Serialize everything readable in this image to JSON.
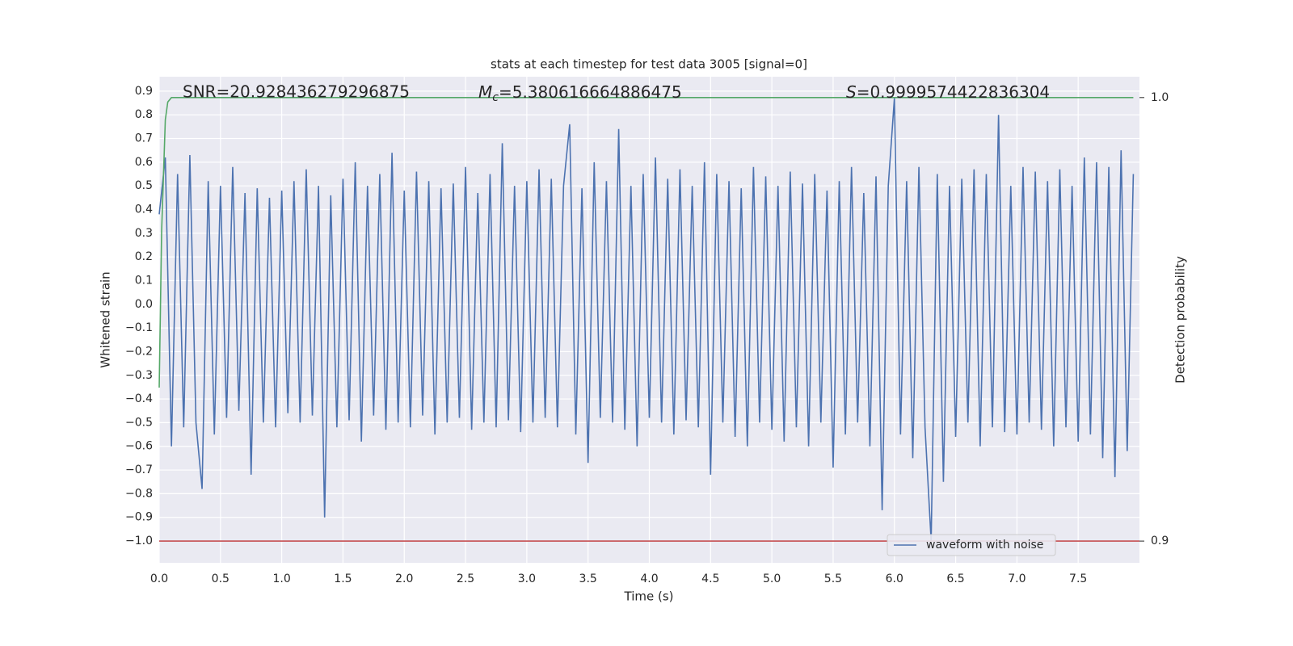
{
  "chart_data": {
    "type": "line",
    "title": "stats at each timestep for test data 3005 [signal=0]",
    "x_label": "Time (s)",
    "y_label": "Whitened strain",
    "y2_label": "Detection probability",
    "annotations": [
      {
        "text": "SNR=20.928436279296875"
      },
      {
        "symbol": "M",
        "subscript": "c",
        "text": "=5.380616664886475"
      },
      {
        "symbol": "S",
        "text": "=0.9999574422836304"
      }
    ],
    "xlim": [
      0,
      8
    ],
    "ylim": [
      -1.092,
      0.961
    ],
    "y2lim": [
      0.8951,
      1.0047
    ],
    "grid": true,
    "legend": "lower right",
    "xticks": [
      {
        "value": 0,
        "label": "0.0"
      },
      {
        "value": 0.5,
        "label": "0.5"
      },
      {
        "value": 1,
        "label": "1.0"
      },
      {
        "value": 1.5,
        "label": "1.5"
      },
      {
        "value": 2,
        "label": "2.0"
      },
      {
        "value": 2.5,
        "label": "2.5"
      },
      {
        "value": 3,
        "label": "3.0"
      },
      {
        "value": 3.5,
        "label": "3.5"
      },
      {
        "value": 4,
        "label": "4.0"
      },
      {
        "value": 4.5,
        "label": "4.5"
      },
      {
        "value": 5,
        "label": "5.0"
      },
      {
        "value": 5.5,
        "label": "5.5"
      },
      {
        "value": 6,
        "label": "6.0"
      },
      {
        "value": 6.5,
        "label": "6.5"
      },
      {
        "value": 7,
        "label": "7.0"
      },
      {
        "value": 7.5,
        "label": "7.5"
      }
    ],
    "yticks": [
      {
        "value": 0.9,
        "label": "0.9"
      },
      {
        "value": 0.8,
        "label": "0.8"
      },
      {
        "value": 0.7,
        "label": "0.7"
      },
      {
        "value": 0.6,
        "label": "0.6"
      },
      {
        "value": 0.5,
        "label": "0.5"
      },
      {
        "value": 0.4,
        "label": "0.4"
      },
      {
        "value": 0.3,
        "label": "0.3"
      },
      {
        "value": 0.2,
        "label": "0.2"
      },
      {
        "value": 0.1,
        "label": "0.1"
      },
      {
        "value": 0,
        "label": "0.0"
      },
      {
        "value": -0.1,
        "label": "−0.1"
      },
      {
        "value": -0.2,
        "label": "−0.2"
      },
      {
        "value": -0.3,
        "label": "−0.3"
      },
      {
        "value": -0.4,
        "label": "−0.4"
      },
      {
        "value": -0.5,
        "label": "−0.5"
      },
      {
        "value": -0.6,
        "label": "−0.6"
      },
      {
        "value": -0.7,
        "label": "−0.7"
      },
      {
        "value": -0.8,
        "label": "−0.8"
      },
      {
        "value": -0.9,
        "label": "−0.9"
      },
      {
        "value": -1,
        "label": "−1.0"
      }
    ],
    "y2ticks": [
      {
        "value": 1,
        "label": "1.0"
      },
      {
        "value": 0.9,
        "label": "0.9"
      }
    ],
    "series": [
      {
        "name": "waveform with noise",
        "color": "#4c72b0",
        "x": [
          0,
          0.05,
          0.1,
          0.15,
          0.2,
          0.25,
          0.3,
          0.35,
          0.4,
          0.45,
          0.5,
          0.55,
          0.6,
          0.65,
          0.7,
          0.75,
          0.8,
          0.85,
          0.9,
          0.95,
          1,
          1.05,
          1.1,
          1.15,
          1.2,
          1.25,
          1.3,
          1.35,
          1.4,
          1.45,
          1.5,
          1.55,
          1.6,
          1.65,
          1.7,
          1.75,
          1.8,
          1.85,
          1.9,
          1.95,
          2,
          2.05,
          2.1,
          2.15,
          2.2,
          2.25,
          2.3,
          2.35,
          2.4,
          2.45,
          2.5,
          2.55,
          2.6,
          2.65,
          2.7,
          2.75,
          2.8,
          2.85,
          2.9,
          2.95,
          3,
          3.05,
          3.1,
          3.15,
          3.2,
          3.25,
          3.3,
          3.35,
          3.4,
          3.45,
          3.5,
          3.55,
          3.6,
          3.65,
          3.7,
          3.75,
          3.8,
          3.85,
          3.9,
          3.95,
          4,
          4.05,
          4.1,
          4.15,
          4.2,
          4.25,
          4.3,
          4.35,
          4.4,
          4.45,
          4.5,
          4.55,
          4.6,
          4.65,
          4.7,
          4.75,
          4.8,
          4.85,
          4.9,
          4.95,
          5,
          5.05,
          5.1,
          5.15,
          5.2,
          5.25,
          5.3,
          5.35,
          5.4,
          5.45,
          5.5,
          5.55,
          5.6,
          5.65,
          5.7,
          5.75,
          5.8,
          5.85,
          5.9,
          5.95,
          6,
          6.05,
          6.1,
          6.15,
          6.2,
          6.25,
          6.3,
          6.35,
          6.4,
          6.45,
          6.5,
          6.55,
          6.6,
          6.65,
          6.7,
          6.75,
          6.8,
          6.85,
          6.9,
          6.95,
          7,
          7.05,
          7.1,
          7.15,
          7.2,
          7.25,
          7.3,
          7.35,
          7.4,
          7.45,
          7.5,
          7.55,
          7.6,
          7.65,
          7.7,
          7.75,
          7.8,
          7.85,
          7.9,
          7.95
        ],
        "values": [
          0.38,
          0.62,
          -0.6,
          0.55,
          -0.52,
          0.63,
          -0.5,
          -0.78,
          0.52,
          -0.55,
          0.5,
          -0.48,
          0.58,
          -0.45,
          0.47,
          -0.72,
          0.49,
          -0.5,
          0.45,
          -0.52,
          0.48,
          -0.46,
          0.52,
          -0.5,
          0.57,
          -0.47,
          0.5,
          -0.9,
          0.46,
          -0.52,
          0.53,
          -0.49,
          0.6,
          -0.58,
          0.5,
          -0.47,
          0.55,
          -0.53,
          0.64,
          -0.5,
          0.48,
          -0.52,
          0.56,
          -0.47,
          0.52,
          -0.55,
          0.49,
          -0.5,
          0.51,
          -0.48,
          0.58,
          -0.53,
          0.47,
          -0.5,
          0.55,
          -0.52,
          0.68,
          -0.49,
          0.5,
          -0.54,
          0.52,
          -0.5,
          0.57,
          -0.48,
          0.53,
          -0.52,
          0.5,
          0.76,
          -0.55,
          0.49,
          -0.67,
          0.6,
          -0.48,
          0.52,
          -0.5,
          0.74,
          -0.53,
          0.5,
          -0.6,
          0.55,
          -0.48,
          0.62,
          -0.5,
          0.53,
          -0.55,
          0.57,
          -0.49,
          0.5,
          -0.52,
          0.6,
          -0.72,
          0.55,
          -0.5,
          0.52,
          -0.56,
          0.49,
          -0.6,
          0.58,
          -0.5,
          0.54,
          -0.53,
          0.5,
          -0.58,
          0.56,
          -0.52,
          0.51,
          -0.6,
          0.55,
          -0.5,
          0.48,
          -0.69,
          0.52,
          -0.55,
          0.58,
          -0.5,
          0.47,
          -0.6,
          0.54,
          -0.87,
          0.5,
          0.87,
          -0.55,
          0.52,
          -0.65,
          0.58,
          -0.52,
          -1.0,
          0.55,
          -0.75,
          0.5,
          -0.56,
          0.53,
          -0.5,
          0.57,
          -0.6,
          0.55,
          -0.52,
          0.8,
          -0.54,
          0.5,
          -0.55,
          0.58,
          -0.5,
          0.56,
          -0.53,
          0.52,
          -0.6,
          0.57,
          -0.52,
          0.5,
          -0.58,
          0.62,
          -0.55,
          0.6,
          -0.65,
          0.58,
          -0.73,
          0.65,
          -0.62,
          0.55
        ]
      }
    ],
    "probability": {
      "color": "#55a868",
      "axis": "y2",
      "x": [
        0,
        0.02,
        0.05,
        0.07,
        0.1,
        7.95
      ],
      "values": [
        0.9346,
        0.97,
        0.995,
        0.999,
        1.0,
        1.0
      ]
    },
    "threshold": {
      "color": "#c44e52",
      "axis": "y2",
      "value": 0.9
    }
  }
}
